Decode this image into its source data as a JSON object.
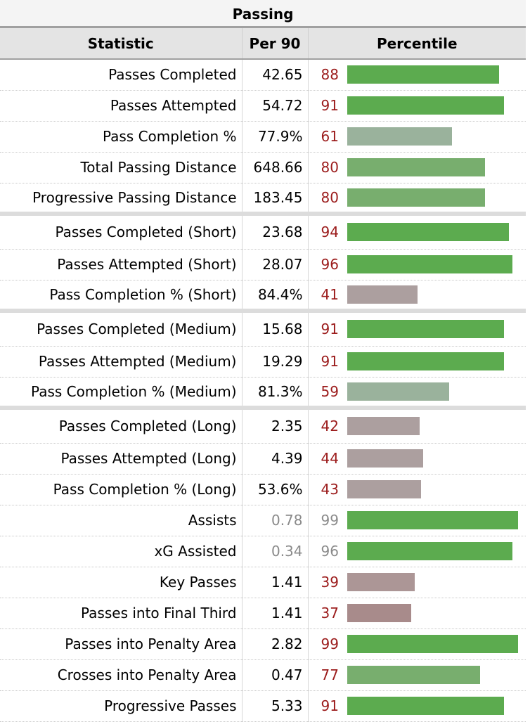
{
  "title": "Passing",
  "headers": {
    "stat": "Statistic",
    "per90": "Per 90",
    "percentile": "Percentile"
  },
  "rows": [
    {
      "stat": "Passes Completed",
      "per90": "42.65",
      "pct": 88,
      "color": "#5cab4f"
    },
    {
      "stat": "Passes Attempted",
      "per90": "54.72",
      "pct": 91,
      "color": "#5cab4f"
    },
    {
      "stat": "Pass Completion %",
      "per90": "77.9%",
      "pct": 61,
      "color": "#9ab29c"
    },
    {
      "stat": "Total Passing Distance",
      "per90": "648.66",
      "pct": 80,
      "color": "#78ae6e"
    },
    {
      "stat": "Progressive Passing Distance",
      "per90": "183.45",
      "pct": 80,
      "color": "#78ae6e"
    },
    {
      "stat": "Passes Completed (Short)",
      "per90": "23.68",
      "pct": 94,
      "color": "#5cab4f",
      "sep": true
    },
    {
      "stat": "Passes Attempted (Short)",
      "per90": "28.07",
      "pct": 96,
      "color": "#5cab4f"
    },
    {
      "stat": "Pass Completion % (Short)",
      "per90": "84.4%",
      "pct": 41,
      "color": "#ac9f9f"
    },
    {
      "stat": "Passes Completed (Medium)",
      "per90": "15.68",
      "pct": 91,
      "color": "#5cab4f",
      "sep": true
    },
    {
      "stat": "Passes Attempted (Medium)",
      "per90": "19.29",
      "pct": 91,
      "color": "#5cab4f"
    },
    {
      "stat": "Pass Completion % (Medium)",
      "per90": "81.3%",
      "pct": 59,
      "color": "#9ab29c"
    },
    {
      "stat": "Passes Completed (Long)",
      "per90": "2.35",
      "pct": 42,
      "color": "#ac9f9f",
      "sep": true
    },
    {
      "stat": "Passes Attempted (Long)",
      "per90": "4.39",
      "pct": 44,
      "color": "#ac9f9f"
    },
    {
      "stat": "Pass Completion % (Long)",
      "per90": "53.6%",
      "pct": 43,
      "color": "#ac9f9f"
    },
    {
      "stat": "Assists",
      "per90": "0.78",
      "pct": 99,
      "color": "#5cab4f",
      "gray": true
    },
    {
      "stat": "xG Assisted",
      "per90": "0.34",
      "pct": 96,
      "color": "#5cab4f",
      "gray": true
    },
    {
      "stat": "Key Passes",
      "per90": "1.41",
      "pct": 39,
      "color": "#ac9696"
    },
    {
      "stat": "Passes into Final Third",
      "per90": "1.41",
      "pct": 37,
      "color": "#a88b8b"
    },
    {
      "stat": "Passes into Penalty Area",
      "per90": "2.82",
      "pct": 99,
      "color": "#5cab4f"
    },
    {
      "stat": "Crosses into Penalty Area",
      "per90": "0.47",
      "pct": 77,
      "color": "#78ae6e"
    },
    {
      "stat": "Progressive Passes",
      "per90": "5.33",
      "pct": 91,
      "color": "#5cab4f"
    }
  ]
}
